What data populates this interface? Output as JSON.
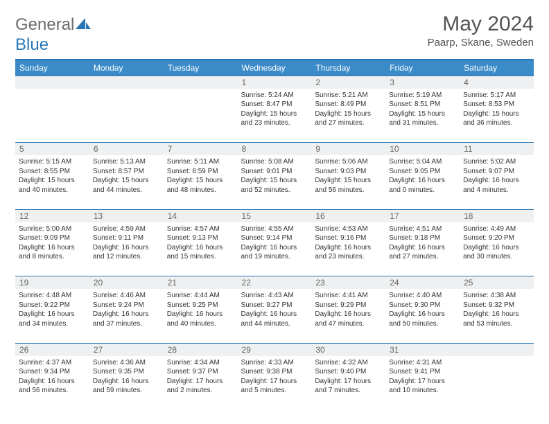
{
  "logo": {
    "text1": "General",
    "text2": "Blue"
  },
  "title": "May 2024",
  "location": "Paarp, Skane, Sweden",
  "colors": {
    "header_bg": "#3b8bc9",
    "accent": "#2676b8",
    "daynum_bg": "#eef0f1",
    "text": "#333333",
    "muted": "#666666"
  },
  "dow": [
    "Sunday",
    "Monday",
    "Tuesday",
    "Wednesday",
    "Thursday",
    "Friday",
    "Saturday"
  ],
  "weeks": [
    [
      null,
      null,
      null,
      {
        "n": "1",
        "sr": "5:24 AM",
        "ss": "8:47 PM",
        "dl": "15 hours and 23 minutes."
      },
      {
        "n": "2",
        "sr": "5:21 AM",
        "ss": "8:49 PM",
        "dl": "15 hours and 27 minutes."
      },
      {
        "n": "3",
        "sr": "5:19 AM",
        "ss": "8:51 PM",
        "dl": "15 hours and 31 minutes."
      },
      {
        "n": "4",
        "sr": "5:17 AM",
        "ss": "8:53 PM",
        "dl": "15 hours and 36 minutes."
      }
    ],
    [
      {
        "n": "5",
        "sr": "5:15 AM",
        "ss": "8:55 PM",
        "dl": "15 hours and 40 minutes."
      },
      {
        "n": "6",
        "sr": "5:13 AM",
        "ss": "8:57 PM",
        "dl": "15 hours and 44 minutes."
      },
      {
        "n": "7",
        "sr": "5:11 AM",
        "ss": "8:59 PM",
        "dl": "15 hours and 48 minutes."
      },
      {
        "n": "8",
        "sr": "5:08 AM",
        "ss": "9:01 PM",
        "dl": "15 hours and 52 minutes."
      },
      {
        "n": "9",
        "sr": "5:06 AM",
        "ss": "9:03 PM",
        "dl": "15 hours and 56 minutes."
      },
      {
        "n": "10",
        "sr": "5:04 AM",
        "ss": "9:05 PM",
        "dl": "16 hours and 0 minutes."
      },
      {
        "n": "11",
        "sr": "5:02 AM",
        "ss": "9:07 PM",
        "dl": "16 hours and 4 minutes."
      }
    ],
    [
      {
        "n": "12",
        "sr": "5:00 AM",
        "ss": "9:09 PM",
        "dl": "16 hours and 8 minutes."
      },
      {
        "n": "13",
        "sr": "4:59 AM",
        "ss": "9:11 PM",
        "dl": "16 hours and 12 minutes."
      },
      {
        "n": "14",
        "sr": "4:57 AM",
        "ss": "9:13 PM",
        "dl": "16 hours and 15 minutes."
      },
      {
        "n": "15",
        "sr": "4:55 AM",
        "ss": "9:14 PM",
        "dl": "16 hours and 19 minutes."
      },
      {
        "n": "16",
        "sr": "4:53 AM",
        "ss": "9:16 PM",
        "dl": "16 hours and 23 minutes."
      },
      {
        "n": "17",
        "sr": "4:51 AM",
        "ss": "9:18 PM",
        "dl": "16 hours and 27 minutes."
      },
      {
        "n": "18",
        "sr": "4:49 AM",
        "ss": "9:20 PM",
        "dl": "16 hours and 30 minutes."
      }
    ],
    [
      {
        "n": "19",
        "sr": "4:48 AM",
        "ss": "9:22 PM",
        "dl": "16 hours and 34 minutes."
      },
      {
        "n": "20",
        "sr": "4:46 AM",
        "ss": "9:24 PM",
        "dl": "16 hours and 37 minutes."
      },
      {
        "n": "21",
        "sr": "4:44 AM",
        "ss": "9:25 PM",
        "dl": "16 hours and 40 minutes."
      },
      {
        "n": "22",
        "sr": "4:43 AM",
        "ss": "9:27 PM",
        "dl": "16 hours and 44 minutes."
      },
      {
        "n": "23",
        "sr": "4:41 AM",
        "ss": "9:29 PM",
        "dl": "16 hours and 47 minutes."
      },
      {
        "n": "24",
        "sr": "4:40 AM",
        "ss": "9:30 PM",
        "dl": "16 hours and 50 minutes."
      },
      {
        "n": "25",
        "sr": "4:38 AM",
        "ss": "9:32 PM",
        "dl": "16 hours and 53 minutes."
      }
    ],
    [
      {
        "n": "26",
        "sr": "4:37 AM",
        "ss": "9:34 PM",
        "dl": "16 hours and 56 minutes."
      },
      {
        "n": "27",
        "sr": "4:36 AM",
        "ss": "9:35 PM",
        "dl": "16 hours and 59 minutes."
      },
      {
        "n": "28",
        "sr": "4:34 AM",
        "ss": "9:37 PM",
        "dl": "17 hours and 2 minutes."
      },
      {
        "n": "29",
        "sr": "4:33 AM",
        "ss": "9:38 PM",
        "dl": "17 hours and 5 minutes."
      },
      {
        "n": "30",
        "sr": "4:32 AM",
        "ss": "9:40 PM",
        "dl": "17 hours and 7 minutes."
      },
      {
        "n": "31",
        "sr": "4:31 AM",
        "ss": "9:41 PM",
        "dl": "17 hours and 10 minutes."
      },
      null
    ]
  ],
  "labels": {
    "sunrise": "Sunrise:",
    "sunset": "Sunset:",
    "daylight": "Daylight:"
  }
}
